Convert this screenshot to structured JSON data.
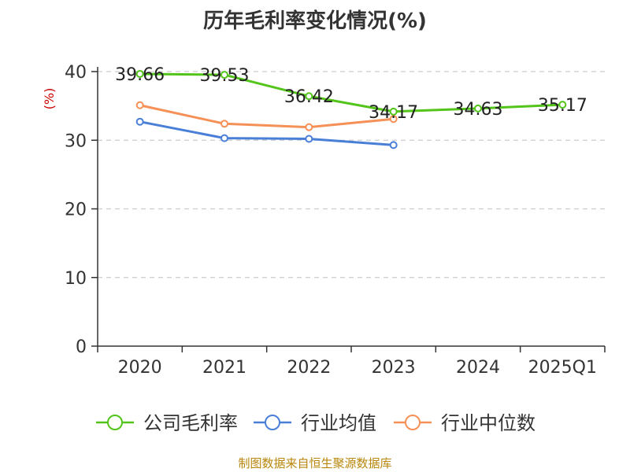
{
  "chart_data": {
    "type": "line",
    "title": "历年毛利率变化情况(%)",
    "ylabel": "(%)",
    "xlabel": "",
    "categories": [
      "2020",
      "2021",
      "2022",
      "2023",
      "2024",
      "2025Q1"
    ],
    "ylim": [
      0,
      40
    ],
    "yticks": [
      0,
      10,
      20,
      30,
      40
    ],
    "grid": true,
    "legend_position": "bottom",
    "series": [
      {
        "name": "公司毛利率",
        "color": "#52c41a",
        "show_labels": true,
        "values": [
          39.66,
          39.53,
          36.42,
          34.17,
          34.63,
          35.17
        ],
        "labels": [
          "39.66",
          "39.53",
          "36.42",
          "34.17",
          "34.63",
          "35.17"
        ]
      },
      {
        "name": "行业均值",
        "color": "#4a7fd8",
        "show_labels": false,
        "values": [
          32.7,
          30.3,
          30.2,
          29.3,
          null,
          null
        ]
      },
      {
        "name": "行业中位数",
        "color": "#f59056",
        "show_labels": false,
        "values": [
          35.1,
          32.4,
          31.9,
          33.1,
          null,
          null
        ]
      }
    ]
  },
  "footer": {
    "source": "制图数据来自恒生聚源数据库"
  }
}
